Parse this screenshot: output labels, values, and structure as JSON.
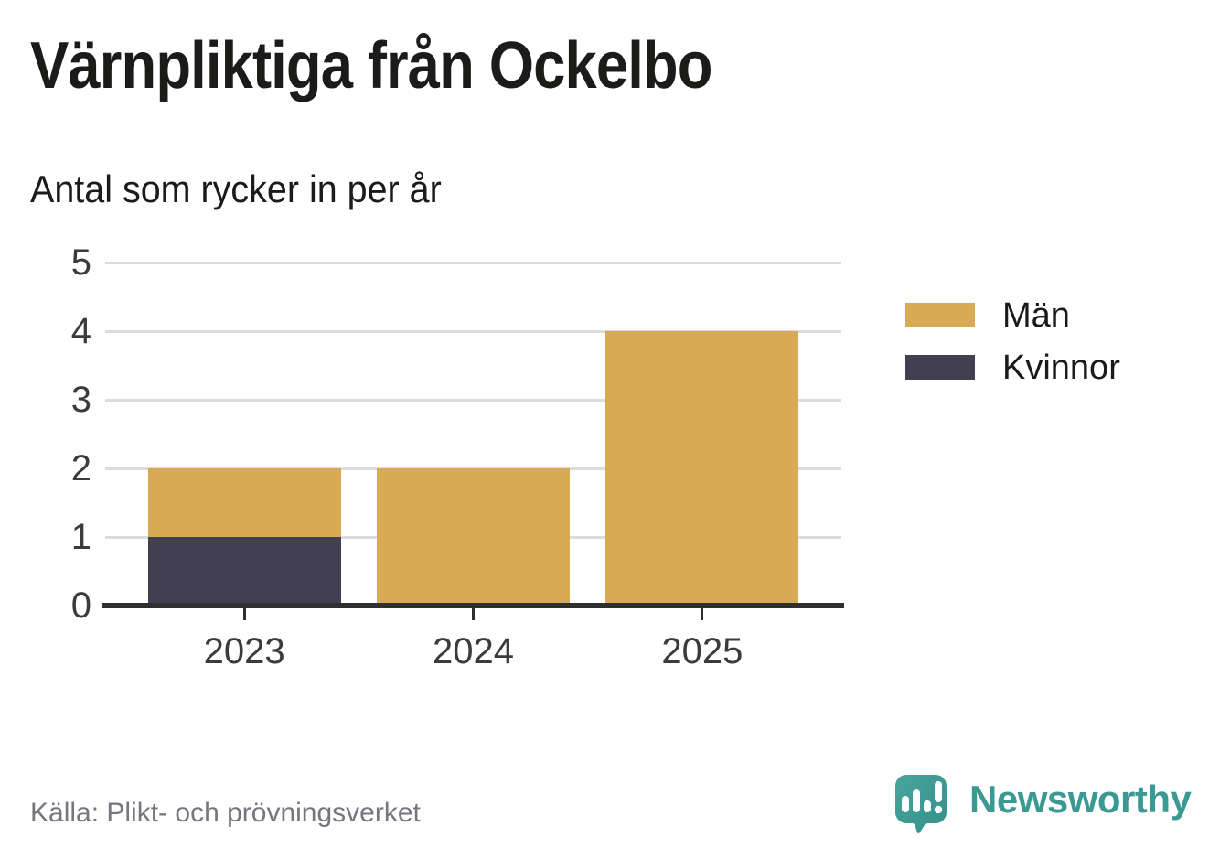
{
  "header": {
    "title": "Värnpliktiga från Ockelbo",
    "subtitle": "Antal som rycker in per år"
  },
  "footer": {
    "source": "Källa: Plikt- och prövningsverket",
    "brand_name": "Newsworthy"
  },
  "icons": {
    "brand_logo": "newsworthy-speech-bubble-bar-chart-icon"
  },
  "colors": {
    "men": "#D9AA55",
    "women": "#423F51",
    "grid": "#DCDCDC",
    "axis": "#2F2F2F",
    "tick_label": "#3B3B3B",
    "text": "#1B1B19",
    "source_text": "#77757E",
    "brand_teal": "#3A9A93",
    "background": "#FFFFFF"
  },
  "chart_data": {
    "type": "bar",
    "stacked": true,
    "title": "Värnpliktiga från Ockelbo",
    "subtitle": "Antal som rycker in per år",
    "categories": [
      "2023",
      "2024",
      "2025"
    ],
    "series": [
      {
        "name": "Män",
        "color": "#D9AA55",
        "values": [
          1,
          2,
          4
        ]
      },
      {
        "name": "Kvinnor",
        "color": "#423F51",
        "values": [
          1,
          0,
          0
        ]
      }
    ],
    "stack_order_bottom_to_top": [
      "Kvinnor",
      "Män"
    ],
    "totals": [
      2,
      2,
      4
    ],
    "xlabel": "",
    "ylabel": "",
    "ylim": [
      0,
      5
    ],
    "yticks": [
      0,
      1,
      2,
      3,
      4,
      5
    ],
    "grid": true,
    "legend_position": "right"
  }
}
